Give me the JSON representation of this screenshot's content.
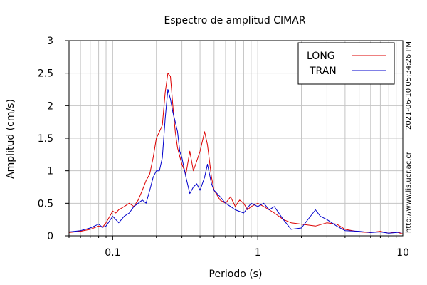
{
  "chart_data": {
    "type": "line",
    "title": "Espectro de amplitud CIMAR",
    "xlabel": "Periodo (s)",
    "ylabel": "Amplitud (cm/s)",
    "x_scale": "log",
    "xlim": [
      0.05,
      10
    ],
    "ylim": [
      0,
      3
    ],
    "x_ticks": [
      {
        "value": 0.1,
        "label": "0.1"
      },
      {
        "value": 1,
        "label": "1"
      },
      {
        "value": 10,
        "label": "10"
      }
    ],
    "y_ticks": [
      {
        "value": 0,
        "label": "0"
      },
      {
        "value": 0.5,
        "label": "0.5"
      },
      {
        "value": 1,
        "label": "1"
      },
      {
        "value": 1.5,
        "label": "1.5"
      },
      {
        "value": 2,
        "label": "2"
      },
      {
        "value": 2.5,
        "label": "2.5"
      },
      {
        "value": 3,
        "label": "3"
      }
    ],
    "grid": true,
    "legend": "top-right",
    "series": [
      {
        "name": "LONG",
        "color": "#dd0000",
        "x": [
          0.05,
          0.06,
          0.07,
          0.08,
          0.085,
          0.09,
          0.1,
          0.105,
          0.11,
          0.12,
          0.13,
          0.14,
          0.15,
          0.16,
          0.17,
          0.18,
          0.19,
          0.2,
          0.21,
          0.22,
          0.23,
          0.24,
          0.25,
          0.26,
          0.27,
          0.28,
          0.3,
          0.32,
          0.34,
          0.36,
          0.38,
          0.4,
          0.43,
          0.45,
          0.48,
          0.5,
          0.55,
          0.6,
          0.65,
          0.7,
          0.75,
          0.8,
          0.85,
          0.9,
          1.0,
          1.1,
          1.2,
          1.3,
          1.4,
          1.5,
          1.7,
          2.0,
          2.5,
          3.0,
          3.5,
          4.0,
          5.0,
          6.0,
          7.0,
          8.0,
          9.0,
          10.0
        ],
        "y": [
          0.05,
          0.07,
          0.1,
          0.15,
          0.13,
          0.2,
          0.38,
          0.35,
          0.4,
          0.45,
          0.5,
          0.45,
          0.55,
          0.7,
          0.85,
          0.95,
          1.2,
          1.5,
          1.6,
          1.7,
          2.2,
          2.5,
          2.45,
          2.0,
          1.6,
          1.35,
          1.1,
          0.95,
          1.3,
          1.0,
          1.15,
          1.3,
          1.6,
          1.4,
          0.9,
          0.7,
          0.55,
          0.5,
          0.6,
          0.45,
          0.55,
          0.5,
          0.4,
          0.45,
          0.5,
          0.45,
          0.4,
          0.35,
          0.3,
          0.25,
          0.2,
          0.18,
          0.15,
          0.2,
          0.18,
          0.1,
          0.06,
          0.05,
          0.07,
          0.04,
          0.06,
          0.03
        ]
      },
      {
        "name": "TRAN",
        "color": "#0000cc",
        "x": [
          0.05,
          0.06,
          0.07,
          0.08,
          0.085,
          0.09,
          0.1,
          0.105,
          0.11,
          0.12,
          0.13,
          0.14,
          0.15,
          0.16,
          0.17,
          0.18,
          0.19,
          0.2,
          0.21,
          0.22,
          0.23,
          0.24,
          0.25,
          0.26,
          0.27,
          0.28,
          0.29,
          0.3,
          0.32,
          0.34,
          0.36,
          0.38,
          0.4,
          0.43,
          0.45,
          0.48,
          0.5,
          0.55,
          0.6,
          0.65,
          0.7,
          0.8,
          0.9,
          1.0,
          1.1,
          1.2,
          1.3,
          1.5,
          1.7,
          2.0,
          2.5,
          2.7,
          3.0,
          3.5,
          4.0,
          5.0,
          6.0,
          7.0,
          8.0,
          9.0,
          10.0
        ],
        "y": [
          0.06,
          0.08,
          0.12,
          0.18,
          0.13,
          0.15,
          0.3,
          0.25,
          0.2,
          0.3,
          0.35,
          0.45,
          0.5,
          0.55,
          0.5,
          0.7,
          0.9,
          1.0,
          1.0,
          1.2,
          1.8,
          2.25,
          2.1,
          1.9,
          1.75,
          1.6,
          1.3,
          1.2,
          0.9,
          0.65,
          0.75,
          0.8,
          0.7,
          0.9,
          1.1,
          0.8,
          0.7,
          0.6,
          0.5,
          0.45,
          0.4,
          0.35,
          0.5,
          0.45,
          0.5,
          0.4,
          0.45,
          0.25,
          0.1,
          0.12,
          0.4,
          0.3,
          0.25,
          0.15,
          0.08,
          0.07,
          0.05,
          0.06,
          0.04,
          0.05,
          0.06
        ]
      }
    ]
  },
  "timestamp": "2021-06-10 05:34:26 PM",
  "source_url": "http://www.lis.ucr.ac.cr"
}
